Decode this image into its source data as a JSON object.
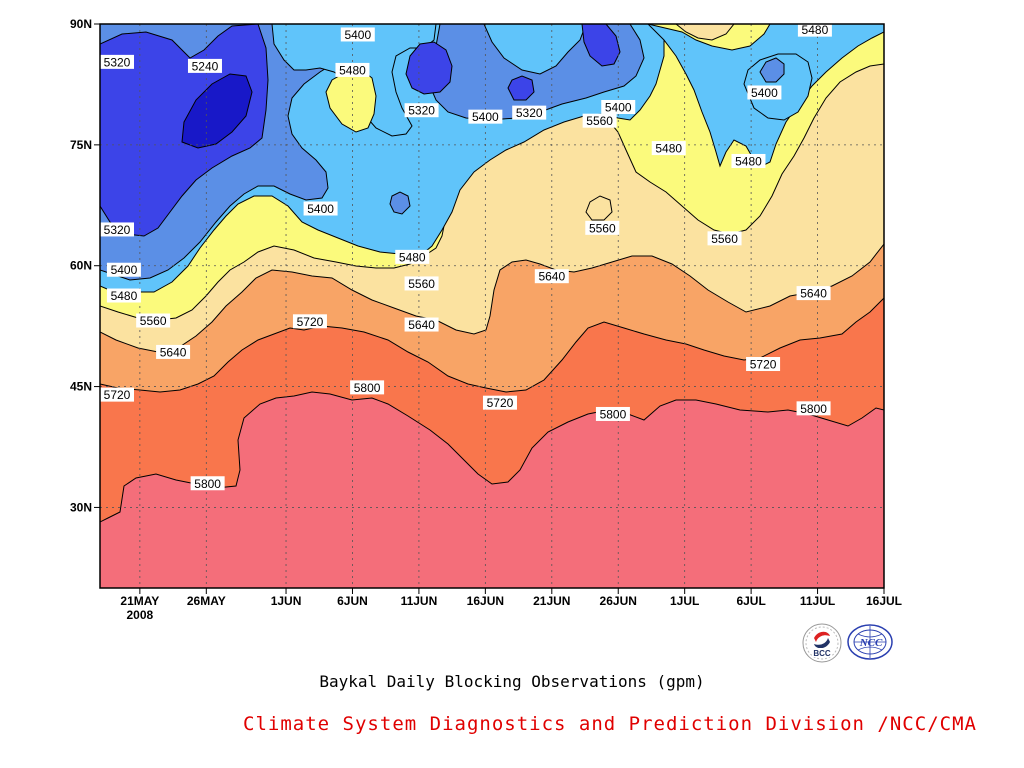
{
  "chart_data": {
    "type": "contour",
    "title": "Baykal Daily Blocking Observations (gpm)",
    "credit": "Climate System Diagnostics and Prediction Division /NCC/CMA",
    "x_ticks": [
      {
        "label": "21MAY",
        "sub": "2008",
        "day": 0
      },
      {
        "label": "26MAY",
        "day": 5
      },
      {
        "label": "1JUN",
        "day": 11
      },
      {
        "label": "6JUN",
        "day": 16
      },
      {
        "label": "11JUN",
        "day": 21
      },
      {
        "label": "16JUN",
        "day": 26
      },
      {
        "label": "21JUN",
        "day": 31
      },
      {
        "label": "26JUN",
        "day": 36
      },
      {
        "label": "1JUL",
        "day": 41
      },
      {
        "label": "6JUL",
        "day": 46
      },
      {
        "label": "11JUL",
        "day": 51
      },
      {
        "label": "16JUL",
        "day": 56
      }
    ],
    "x_range_days": [
      -3,
      56
    ],
    "y_ticks": [
      {
        "label": "90N",
        "lat": 90
      },
      {
        "label": "75N",
        "lat": 75
      },
      {
        "label": "60N",
        "lat": 60
      },
      {
        "label": "45N",
        "lat": 45
      },
      {
        "label": "30N",
        "lat": 30
      }
    ],
    "y_range_lat": [
      20,
      90
    ],
    "levels": [
      5240,
      5320,
      5400,
      5480,
      5560,
      5640,
      5720,
      5800
    ],
    "band_colors": {
      "below_5240": "#1818c8",
      "5240_5320": "#3c44e8",
      "5320_5400": "#5b8fe6",
      "5400_5480": "#60c4fa",
      "5480_5560": "#fbfa7c",
      "5560_5640": "#fbe2a0",
      "5640_5720": "#f8a466",
      "5720_5800": "#f9764c",
      "above_5800": "#f46e7a"
    },
    "contour_labels": [
      {
        "text": "5320",
        "day": -2.2,
        "lat": 85.3
      },
      {
        "text": "5240",
        "day": 4.9,
        "lat": 84.8
      },
      {
        "text": "5400",
        "day": 16.4,
        "lat": 88.7
      },
      {
        "text": "5480",
        "day": 16.0,
        "lat": 84.3
      },
      {
        "text": "5320",
        "day": 21.2,
        "lat": 79.3
      },
      {
        "text": "5400",
        "day": 26.0,
        "lat": 78.5
      },
      {
        "text": "5320",
        "day": 29.3,
        "lat": 79.0
      },
      {
        "text": "5480",
        "day": 50.8,
        "lat": 89.3
      },
      {
        "text": "5400",
        "day": 36.0,
        "lat": 79.7
      },
      {
        "text": "5400",
        "day": 47.0,
        "lat": 81.5
      },
      {
        "text": "5560",
        "day": 34.6,
        "lat": 78.0
      },
      {
        "text": "5480",
        "day": 39.8,
        "lat": 74.6
      },
      {
        "text": "5480",
        "day": 45.8,
        "lat": 73.0
      },
      {
        "text": "5400",
        "day": 13.6,
        "lat": 67.1
      },
      {
        "text": "5560",
        "day": 34.8,
        "lat": 64.7
      },
      {
        "text": "5560",
        "day": 44.0,
        "lat": 63.4
      },
      {
        "text": "5320",
        "day": -2.0,
        "lat": 64.5
      },
      {
        "text": "5480",
        "day": 20.5,
        "lat": 61.1
      },
      {
        "text": "5400",
        "day": -1.2,
        "lat": 59.5
      },
      {
        "text": "5640",
        "day": 31.0,
        "lat": 58.7
      },
      {
        "text": "5560",
        "day": 21.2,
        "lat": 57.8
      },
      {
        "text": "5480",
        "day": -1.2,
        "lat": 56.3
      },
      {
        "text": "5640",
        "day": 50.7,
        "lat": 56.6
      },
      {
        "text": "5720",
        "day": 12.8,
        "lat": 53.1
      },
      {
        "text": "5560",
        "day": 1.0,
        "lat": 53.2
      },
      {
        "text": "5640",
        "day": 21.2,
        "lat": 52.7
      },
      {
        "text": "5640",
        "day": 2.5,
        "lat": 49.3
      },
      {
        "text": "5720",
        "day": 46.9,
        "lat": 47.8
      },
      {
        "text": "5720",
        "day": -3.0,
        "lat": 44.0
      },
      {
        "text": "5800",
        "day": 17.1,
        "lat": 44.9
      },
      {
        "text": "5720",
        "day": 27.1,
        "lat": 43.0
      },
      {
        "text": "5800",
        "day": 35.6,
        "lat": 41.6
      },
      {
        "text": "5800",
        "day": 50.7,
        "lat": 42.3
      },
      {
        "text": "5800",
        "day": 5.1,
        "lat": 33.0
      }
    ]
  }
}
